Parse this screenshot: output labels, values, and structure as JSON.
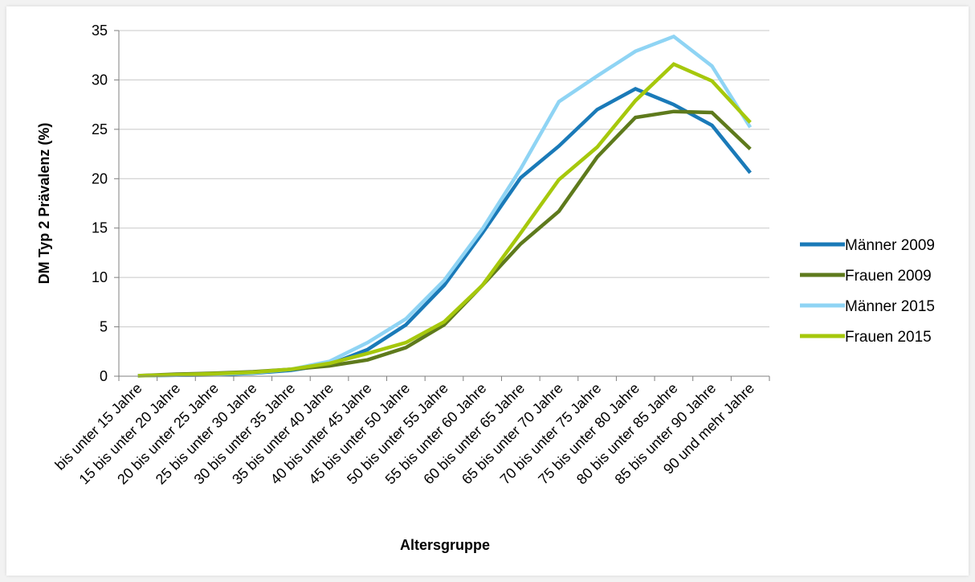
{
  "chart_data": {
    "type": "line",
    "xlabel": "Altersgruppe",
    "ylabel": "DM Typ 2 Prävalenz (%)",
    "ylim": [
      0,
      35
    ],
    "yticks": [
      "0",
      "5",
      "10",
      "15",
      "20",
      "25",
      "30",
      "35"
    ],
    "grid": "horizontal",
    "legend_position": "right",
    "categories": [
      "bis unter 15 Jahre",
      "15 bis unter 20 Jahre",
      "20 bis unter 25 Jahre",
      "25 bis unter 30 Jahre",
      "30 bis unter 35 Jahre",
      "35 bis unter 40 Jahre",
      "40 bis unter 45 Jahre",
      "45 bis unter 50 Jahre",
      "50 bis unter 55 Jahre",
      "55 bis unter 60 Jahre",
      "60 bis unter 65 Jahre",
      "65 bis unter 70 Jahre",
      "70 bis unter 75 Jahre",
      "75 bis unter 80 Jahre",
      "80 bis unter 85 Jahre",
      "85 bis unter 90 Jahre",
      "90 und mehr Jahre"
    ],
    "series": [
      {
        "name": "Männer 2009",
        "color": "#1a7ab8",
        "values": [
          0.05,
          0.1,
          0.15,
          0.3,
          0.6,
          1.2,
          2.7,
          5.2,
          9.2,
          14.5,
          20.1,
          23.3,
          27.0,
          29.1,
          27.5,
          25.4,
          20.6
        ]
      },
      {
        "name": "Frauen 2009",
        "color": "#5e7a1c",
        "values": [
          0.05,
          0.2,
          0.3,
          0.45,
          0.7,
          1.05,
          1.65,
          2.9,
          5.2,
          9.2,
          13.4,
          16.7,
          22.2,
          26.2,
          26.8,
          26.7,
          23.0
        ]
      },
      {
        "name": "Männer 2015",
        "color": "#8fd4f4",
        "values": [
          0.05,
          0.1,
          0.2,
          0.35,
          0.7,
          1.5,
          3.4,
          5.8,
          9.7,
          14.9,
          21.0,
          27.8,
          30.4,
          32.9,
          34.4,
          31.4,
          25.2
        ]
      },
      {
        "name": "Frauen 2015",
        "color": "#a6c80c",
        "values": [
          0.05,
          0.15,
          0.25,
          0.4,
          0.7,
          1.3,
          2.3,
          3.4,
          5.5,
          9.2,
          14.5,
          19.9,
          23.2,
          27.9,
          31.6,
          29.9,
          25.7
        ]
      }
    ]
  }
}
